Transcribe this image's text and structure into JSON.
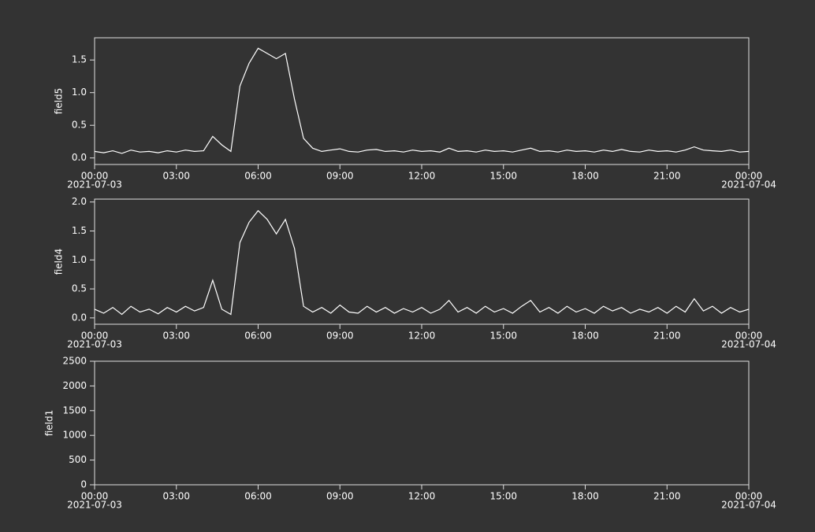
{
  "chart_data": [
    {
      "type": "line",
      "ylabel": "field5",
      "x": [
        "2021-07-03 00:00",
        "2021-07-03 00:20",
        "2021-07-03 00:40",
        "2021-07-03 01:00",
        "2021-07-03 01:20",
        "2021-07-03 01:40",
        "2021-07-03 02:00",
        "2021-07-03 02:20",
        "2021-07-03 02:40",
        "2021-07-03 03:00",
        "2021-07-03 03:20",
        "2021-07-03 03:40",
        "2021-07-03 04:00",
        "2021-07-03 04:20",
        "2021-07-03 04:40",
        "2021-07-03 05:00",
        "2021-07-03 05:20",
        "2021-07-03 05:40",
        "2021-07-03 06:00",
        "2021-07-03 06:20",
        "2021-07-03 06:40",
        "2021-07-03 07:00",
        "2021-07-03 07:20",
        "2021-07-03 07:40",
        "2021-07-03 08:00",
        "2021-07-03 08:20",
        "2021-07-03 08:40",
        "2021-07-03 09:00",
        "2021-07-03 09:20",
        "2021-07-03 09:40",
        "2021-07-03 10:00",
        "2021-07-03 10:20",
        "2021-07-03 10:40",
        "2021-07-03 11:00",
        "2021-07-03 11:20",
        "2021-07-03 11:40",
        "2021-07-03 12:00",
        "2021-07-03 12:20",
        "2021-07-03 12:40",
        "2021-07-03 13:00",
        "2021-07-03 13:20",
        "2021-07-03 13:40",
        "2021-07-03 14:00",
        "2021-07-03 14:20",
        "2021-07-03 14:40",
        "2021-07-03 15:00",
        "2021-07-03 15:20",
        "2021-07-03 15:40",
        "2021-07-03 16:00",
        "2021-07-03 16:20",
        "2021-07-03 16:40",
        "2021-07-03 17:00",
        "2021-07-03 17:20",
        "2021-07-03 17:40",
        "2021-07-03 18:00",
        "2021-07-03 18:20",
        "2021-07-03 18:40",
        "2021-07-03 19:00",
        "2021-07-03 19:20",
        "2021-07-03 19:40",
        "2021-07-03 20:00",
        "2021-07-03 20:20",
        "2021-07-03 20:40",
        "2021-07-03 21:00",
        "2021-07-03 21:20",
        "2021-07-03 21:40",
        "2021-07-03 22:00",
        "2021-07-03 22:20",
        "2021-07-03 22:40",
        "2021-07-03 23:00",
        "2021-07-03 23:20",
        "2021-07-03 23:40",
        "2021-07-04 00:00"
      ],
      "series": [
        {
          "color": "#ffffff",
          "values": [
            0.1,
            0.08,
            0.11,
            0.07,
            0.12,
            0.09,
            0.1,
            0.08,
            0.11,
            0.09,
            0.12,
            0.1,
            0.11,
            0.33,
            0.2,
            0.1,
            1.1,
            1.45,
            1.68,
            1.6,
            1.52,
            1.6,
            0.9,
            0.3,
            0.15,
            0.1,
            0.12,
            0.14,
            0.1,
            0.09,
            0.12,
            0.13,
            0.1,
            0.11,
            0.09,
            0.12,
            0.1,
            0.11,
            0.09,
            0.15,
            0.1,
            0.11,
            0.09,
            0.12,
            0.1,
            0.11,
            0.09,
            0.12,
            0.15,
            0.1,
            0.11,
            0.09,
            0.12,
            0.1,
            0.11,
            0.09,
            0.12,
            0.1,
            0.13,
            0.1,
            0.09,
            0.12,
            0.1,
            0.11,
            0.09,
            0.12,
            0.17,
            0.12,
            0.11,
            0.1,
            0.12,
            0.09,
            0.1
          ]
        }
      ],
      "xlim": [
        "2021-07-03 00:00",
        "2021-07-04 00:00"
      ],
      "xticks": [
        {
          "value": "2021-07-03 00:00",
          "label": [
            "00:00",
            "2021-07-03"
          ]
        },
        {
          "value": "2021-07-03 03:00",
          "label": "03:00"
        },
        {
          "value": "2021-07-03 06:00",
          "label": "06:00"
        },
        {
          "value": "2021-07-03 09:00",
          "label": "09:00"
        },
        {
          "value": "2021-07-03 12:00",
          "label": "12:00"
        },
        {
          "value": "2021-07-03 15:00",
          "label": "15:00"
        },
        {
          "value": "2021-07-03 18:00",
          "label": "18:00"
        },
        {
          "value": "2021-07-03 21:00",
          "label": "21:00"
        },
        {
          "value": "2021-07-04 00:00",
          "label": [
            "00:00",
            "2021-07-04"
          ]
        }
      ],
      "ylim": [
        -0.1,
        1.84
      ],
      "yticks": [
        {
          "value": 0,
          "label": "0.0"
        },
        0.5,
        {
          "value": 1,
          "label": "1.0"
        },
        1.5
      ]
    },
    {
      "type": "line",
      "ylabel": "field4",
      "x": [
        "2021-07-03 00:00",
        "2021-07-03 00:20",
        "2021-07-03 00:40",
        "2021-07-03 01:00",
        "2021-07-03 01:20",
        "2021-07-03 01:40",
        "2021-07-03 02:00",
        "2021-07-03 02:20",
        "2021-07-03 02:40",
        "2021-07-03 03:00",
        "2021-07-03 03:20",
        "2021-07-03 03:40",
        "2021-07-03 04:00",
        "2021-07-03 04:20",
        "2021-07-03 04:40",
        "2021-07-03 05:00",
        "2021-07-03 05:20",
        "2021-07-03 05:40",
        "2021-07-03 06:00",
        "2021-07-03 06:20",
        "2021-07-03 06:40",
        "2021-07-03 07:00",
        "2021-07-03 07:20",
        "2021-07-03 07:40",
        "2021-07-03 08:00",
        "2021-07-03 08:20",
        "2021-07-03 08:40",
        "2021-07-03 09:00",
        "2021-07-03 09:20",
        "2021-07-03 09:40",
        "2021-07-03 10:00",
        "2021-07-03 10:20",
        "2021-07-03 10:40",
        "2021-07-03 11:00",
        "2021-07-03 11:20",
        "2021-07-03 11:40",
        "2021-07-03 12:00",
        "2021-07-03 12:20",
        "2021-07-03 12:40",
        "2021-07-03 13:00",
        "2021-07-03 13:20",
        "2021-07-03 13:40",
        "2021-07-03 14:00",
        "2021-07-03 14:20",
        "2021-07-03 14:40",
        "2021-07-03 15:00",
        "2021-07-03 15:20",
        "2021-07-03 15:40",
        "2021-07-03 16:00",
        "2021-07-03 16:20",
        "2021-07-03 16:40",
        "2021-07-03 17:00",
        "2021-07-03 17:20",
        "2021-07-03 17:40",
        "2021-07-03 18:00",
        "2021-07-03 18:20",
        "2021-07-03 18:40",
        "2021-07-03 19:00",
        "2021-07-03 19:20",
        "2021-07-03 19:40",
        "2021-07-03 20:00",
        "2021-07-03 20:20",
        "2021-07-03 20:40",
        "2021-07-03 21:00",
        "2021-07-03 21:20",
        "2021-07-03 21:40",
        "2021-07-03 22:00",
        "2021-07-03 22:20",
        "2021-07-03 22:40",
        "2021-07-03 23:00",
        "2021-07-03 23:20",
        "2021-07-03 23:40",
        "2021-07-04 00:00"
      ],
      "series": [
        {
          "color": "#ffffff",
          "values": [
            0.15,
            0.08,
            0.18,
            0.06,
            0.2,
            0.1,
            0.15,
            0.07,
            0.18,
            0.1,
            0.2,
            0.12,
            0.18,
            0.65,
            0.15,
            0.06,
            1.3,
            1.65,
            1.85,
            1.7,
            1.45,
            1.7,
            1.2,
            0.2,
            0.1,
            0.18,
            0.08,
            0.22,
            0.1,
            0.08,
            0.2,
            0.1,
            0.18,
            0.08,
            0.16,
            0.1,
            0.18,
            0.08,
            0.15,
            0.3,
            0.1,
            0.18,
            0.08,
            0.2,
            0.1,
            0.16,
            0.08,
            0.2,
            0.3,
            0.1,
            0.18,
            0.08,
            0.2,
            0.1,
            0.16,
            0.08,
            0.2,
            0.12,
            0.18,
            0.08,
            0.15,
            0.1,
            0.18,
            0.08,
            0.2,
            0.1,
            0.33,
            0.12,
            0.2,
            0.08,
            0.18,
            0.1,
            0.15
          ]
        }
      ],
      "xlim": [
        "2021-07-03 00:00",
        "2021-07-04 00:00"
      ],
      "xticks": [
        {
          "value": "2021-07-03 00:00",
          "label": [
            "00:00",
            "2021-07-03"
          ]
        },
        {
          "value": "2021-07-03 03:00",
          "label": "03:00"
        },
        {
          "value": "2021-07-03 06:00",
          "label": "06:00"
        },
        {
          "value": "2021-07-03 09:00",
          "label": "09:00"
        },
        {
          "value": "2021-07-03 12:00",
          "label": "12:00"
        },
        {
          "value": "2021-07-03 15:00",
          "label": "15:00"
        },
        {
          "value": "2021-07-03 18:00",
          "label": "18:00"
        },
        {
          "value": "2021-07-03 21:00",
          "label": "21:00"
        },
        {
          "value": "2021-07-04 00:00",
          "label": [
            "00:00",
            "2021-07-04"
          ]
        }
      ],
      "ylim": [
        -0.11,
        2.05
      ],
      "yticks": [
        {
          "value": 0,
          "label": "0.0"
        },
        0.5,
        {
          "value": 1,
          "label": "1.0"
        },
        1.5,
        {
          "value": 2,
          "label": "2.0"
        }
      ]
    },
    {
      "type": "line",
      "ylabel": "field1",
      "xlim": [
        "2021-07-03 00:00",
        "2021-07-04 00:00"
      ],
      "xticks": [
        {
          "value": "2021-07-03 00:00",
          "label": [
            "00:00",
            "2021-07-03"
          ]
        },
        {
          "value": "2021-07-03 03:00",
          "label": "03:00"
        },
        {
          "value": "2021-07-03 06:00",
          "label": "06:00"
        },
        {
          "value": "2021-07-03 09:00",
          "label": "09:00"
        },
        {
          "value": "2021-07-03 12:00",
          "label": "12:00"
        },
        {
          "value": "2021-07-03 15:00",
          "label": "15:00"
        },
        {
          "value": "2021-07-03 18:00",
          "label": "18:00"
        },
        {
          "value": "2021-07-03 21:00",
          "label": "21:00"
        },
        {
          "value": "2021-07-04 00:00",
          "label": [
            "00:00",
            "2021-07-04"
          ]
        }
      ],
      "ylim": [
        0,
        2500
      ],
      "yticks": [
        0,
        500,
        1000,
        1500,
        2000,
        2500
      ]
    }
  ]
}
